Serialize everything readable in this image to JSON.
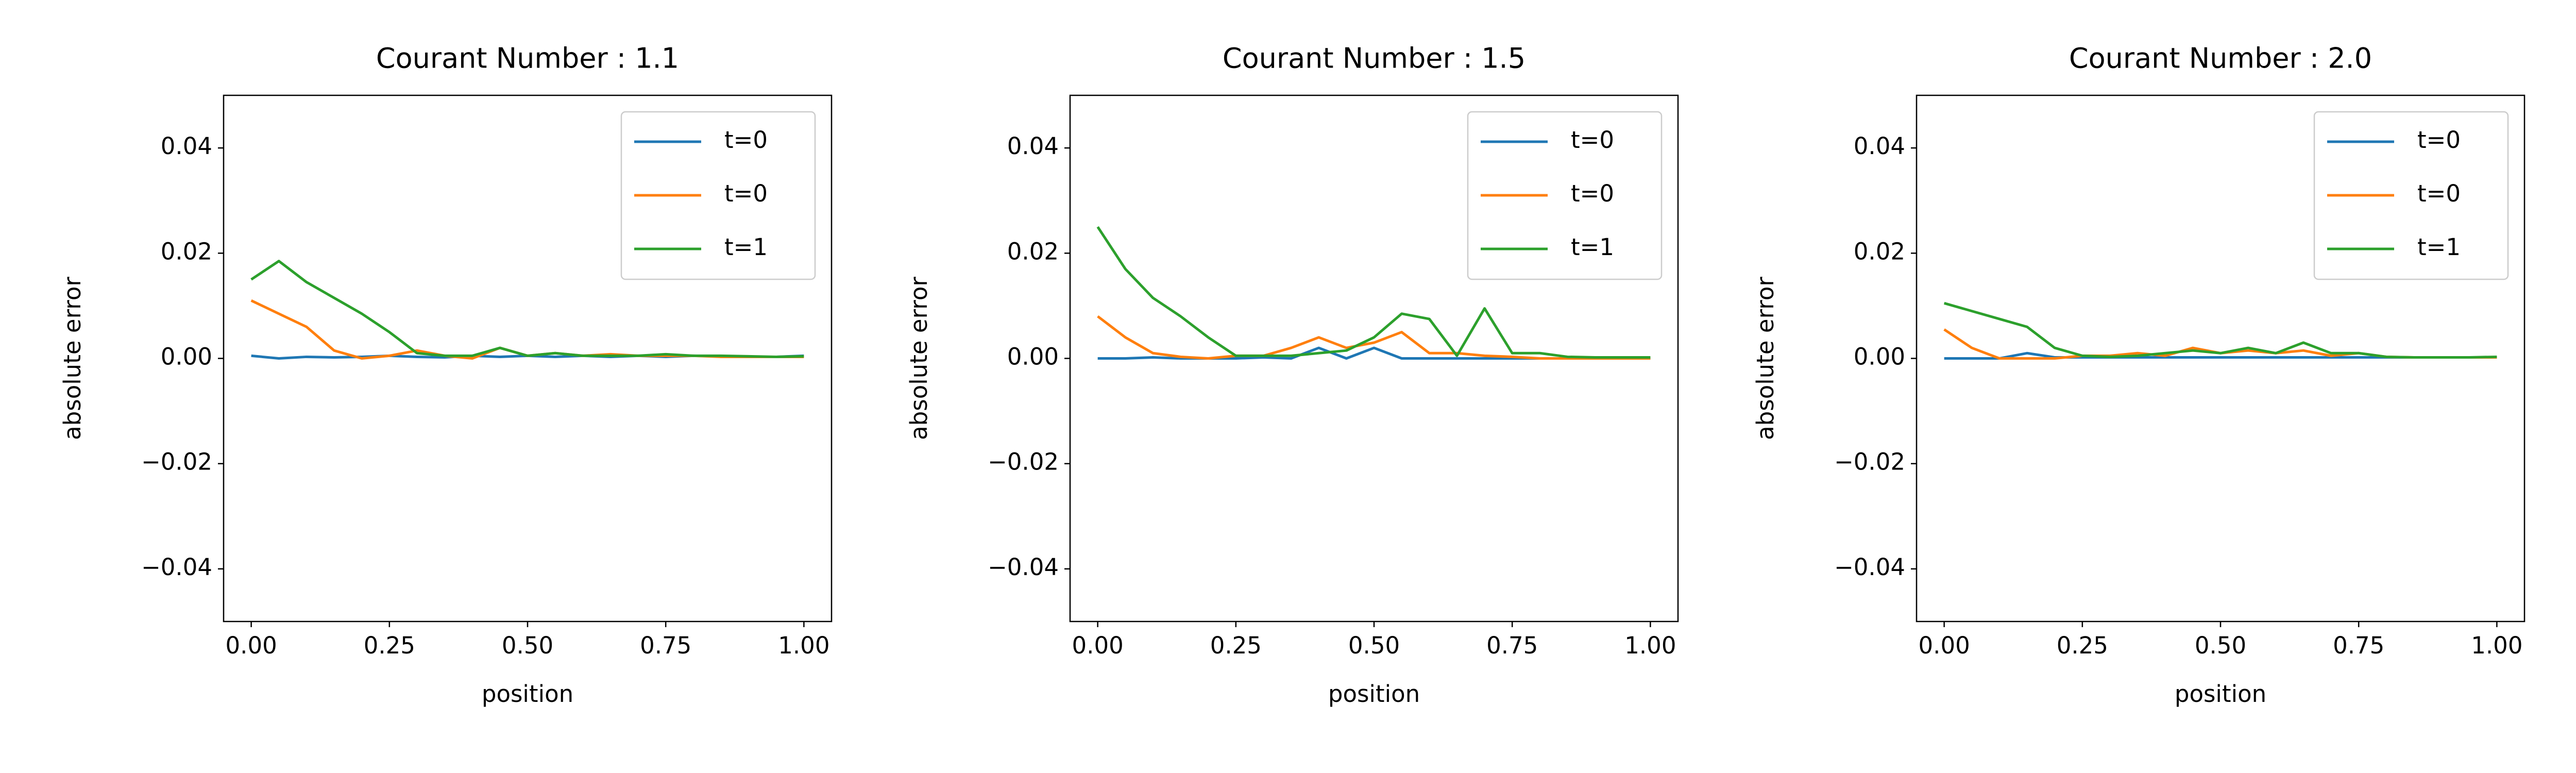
{
  "chart_data": [
    {
      "type": "line",
      "title": "Courant Number : 1.1",
      "xlabel": "position",
      "ylabel": "absolute error",
      "x": [
        0,
        0.05,
        0.1,
        0.15,
        0.2,
        0.25,
        0.3,
        0.35,
        0.4,
        0.45,
        0.5,
        0.55,
        0.6,
        0.65,
        0.7,
        0.75,
        0.8,
        0.85,
        0.9,
        0.95,
        1.0
      ],
      "series": [
        {
          "name": "t=0",
          "color": "#1f77b4",
          "values": [
            0.0005,
            0.0,
            0.0003,
            0.0002,
            0.0003,
            0.0005,
            0.0003,
            0.0002,
            0.0005,
            0.0003,
            0.0005,
            0.0003,
            0.0005,
            0.0003,
            0.0005,
            0.0003,
            0.0005,
            0.0004,
            0.0003,
            0.0003,
            0.0005
          ]
        },
        {
          "name": "t=0",
          "color": "#ff7f0e",
          "values": [
            0.011,
            0.0085,
            0.006,
            0.0015,
            0.0,
            0.0005,
            0.0015,
            0.0005,
            0.0,
            0.002,
            0.0005,
            0.001,
            0.0005,
            0.0008,
            0.0005,
            0.0005,
            0.0005,
            0.0003,
            0.0003,
            0.0003,
            0.0003
          ]
        },
        {
          "name": "t=1",
          "color": "#2ca02c",
          "values": [
            0.015,
            0.0185,
            0.0145,
            0.0115,
            0.0085,
            0.005,
            0.001,
            0.0005,
            0.0005,
            0.002,
            0.0005,
            0.001,
            0.0005,
            0.0005,
            0.0005,
            0.0008,
            0.0005,
            0.0005,
            0.0004,
            0.0003,
            0.0004
          ]
        }
      ],
      "xlim": [
        -0.05,
        1.05
      ],
      "ylim": [
        -0.05,
        0.05
      ],
      "xticks": [
        {
          "value": 0,
          "label": "0.00"
        },
        0.25,
        {
          "value": 0.5,
          "label": "0.50"
        },
        0.75,
        {
          "value": 1,
          "label": "1.00"
        }
      ],
      "yticks": [
        {
          "value": -0.04,
          "label": "−0.04"
        },
        {
          "value": -0.02,
          "label": "−0.02"
        },
        {
          "value": 0,
          "label": "0.00"
        },
        0.02,
        0.04
      ],
      "legend": "upper right"
    },
    {
      "type": "line",
      "title": "Courant Number : 1.5",
      "xlabel": "position",
      "ylabel": "absolute error",
      "x": [
        0,
        0.05,
        0.1,
        0.15,
        0.2,
        0.25,
        0.3,
        0.35,
        0.4,
        0.45,
        0.5,
        0.55,
        0.6,
        0.65,
        0.7,
        0.75,
        0.8,
        0.85,
        0.9,
        0.95,
        1.0
      ],
      "series": [
        {
          "name": "t=0",
          "color": "#1f77b4",
          "values": [
            0.0,
            0.0,
            0.0002,
            0.0,
            0.0,
            0.0,
            0.0002,
            0.0,
            0.002,
            0.0,
            0.002,
            0.0,
            0.0,
            0.0,
            0.0,
            0.0,
            0.0,
            0.0,
            0.0,
            0.0,
            0.0
          ]
        },
        {
          "name": "t=0",
          "color": "#ff7f0e",
          "values": [
            0.008,
            0.004,
            0.001,
            0.0003,
            0.0,
            0.0005,
            0.0005,
            0.002,
            0.004,
            0.002,
            0.003,
            0.005,
            0.001,
            0.001,
            0.0005,
            0.0003,
            0.0,
            0.0,
            0.0,
            0.0,
            0.0
          ]
        },
        {
          "name": "t=1",
          "color": "#2ca02c",
          "values": [
            0.025,
            0.017,
            0.0115,
            0.008,
            0.004,
            0.0005,
            0.0005,
            0.0005,
            0.001,
            0.0015,
            0.004,
            0.0085,
            0.0075,
            0.0005,
            0.0095,
            0.001,
            0.001,
            0.0003,
            0.0002,
            0.0002,
            0.0002
          ]
        }
      ],
      "xlim": [
        -0.05,
        1.05
      ],
      "ylim": [
        -0.05,
        0.05
      ],
      "xticks": [
        {
          "value": 0,
          "label": "0.00"
        },
        0.25,
        {
          "value": 0.5,
          "label": "0.50"
        },
        0.75,
        {
          "value": 1,
          "label": "1.00"
        }
      ],
      "yticks": [
        {
          "value": -0.04,
          "label": "−0.04"
        },
        {
          "value": -0.02,
          "label": "−0.02"
        },
        {
          "value": 0,
          "label": "0.00"
        },
        0.02,
        0.04
      ],
      "legend": "upper right"
    },
    {
      "type": "line",
      "title": "Courant Number : 2.0",
      "xlabel": "position",
      "ylabel": "absolute error",
      "x": [
        0,
        0.05,
        0.1,
        0.15,
        0.2,
        0.25,
        0.3,
        0.35,
        0.4,
        0.45,
        0.5,
        0.55,
        0.6,
        0.65,
        0.7,
        0.75,
        0.8,
        0.85,
        0.9,
        0.95,
        1.0
      ],
      "series": [
        {
          "name": "t=0",
          "color": "#1f77b4",
          "values": [
            0.0,
            0.0,
            0.0,
            0.001,
            0.0002,
            0.0002,
            0.0002,
            0.0002,
            0.0002,
            0.0002,
            0.0002,
            0.0002,
            0.0002,
            0.0002,
            0.0002,
            0.0002,
            0.0002,
            0.0002,
            0.0002,
            0.0002,
            0.0002
          ]
        },
        {
          "name": "t=0",
          "color": "#ff7f0e",
          "values": [
            0.0055,
            0.002,
            0.0,
            0.0,
            0.0,
            0.0005,
            0.0005,
            0.001,
            0.0005,
            0.002,
            0.001,
            0.0015,
            0.001,
            0.0015,
            0.0005,
            0.001,
            0.0003,
            0.0002,
            0.0002,
            0.0002,
            0.0002
          ]
        },
        {
          "name": "t=1",
          "color": "#2ca02c",
          "values": [
            0.0105,
            0.009,
            0.0075,
            0.006,
            0.002,
            0.0005,
            0.0003,
            0.0005,
            0.001,
            0.0015,
            0.001,
            0.002,
            0.001,
            0.003,
            0.001,
            0.001,
            0.0003,
            0.0002,
            0.0002,
            0.0002,
            0.0003
          ]
        }
      ],
      "xlim": [
        -0.05,
        1.05
      ],
      "ylim": [
        -0.05,
        0.05
      ],
      "xticks": [
        {
          "value": 0,
          "label": "0.00"
        },
        0.25,
        {
          "value": 0.5,
          "label": "0.50"
        },
        0.75,
        {
          "value": 1,
          "label": "1.00"
        }
      ],
      "yticks": [
        {
          "value": -0.04,
          "label": "−0.04"
        },
        {
          "value": -0.02,
          "label": "−0.02"
        },
        {
          "value": 0,
          "label": "0.00"
        },
        0.02,
        0.04
      ],
      "legend": "upper right"
    }
  ]
}
